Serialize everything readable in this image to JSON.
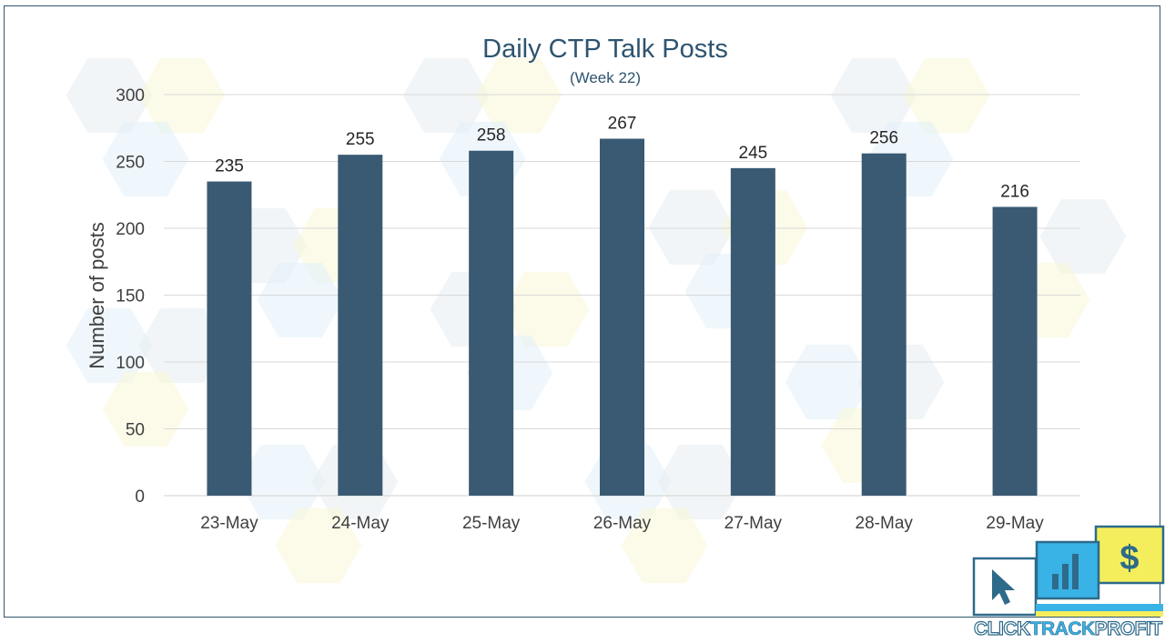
{
  "chart_data": {
    "type": "bar",
    "title": "Daily CTP Talk Posts",
    "subtitle": "(Week 22)",
    "xlabel": "",
    "ylabel": "Number of posts",
    "categories": [
      "23-May",
      "24-May",
      "25-May",
      "26-May",
      "27-May",
      "28-May",
      "29-May"
    ],
    "values": [
      235,
      255,
      258,
      267,
      245,
      256,
      216
    ],
    "ylim": [
      0,
      300
    ],
    "yticks": [
      0,
      50,
      100,
      150,
      200,
      250,
      300
    ],
    "grid": true,
    "data_labels": true,
    "bar_color": "#3a5a73",
    "grid_color": "#d9d9d9"
  },
  "branding": {
    "logo_word_1": "CLICK",
    "logo_word_2": "TRACK",
    "logo_word_3": "PROFIT",
    "logo_icons": [
      "cursor-icon",
      "bar-chart-icon",
      "dollar-icon"
    ],
    "logo_colors": {
      "blue": "#39b2e6",
      "yellow": "#f4ee5c",
      "navy": "#2e6a8a"
    }
  }
}
